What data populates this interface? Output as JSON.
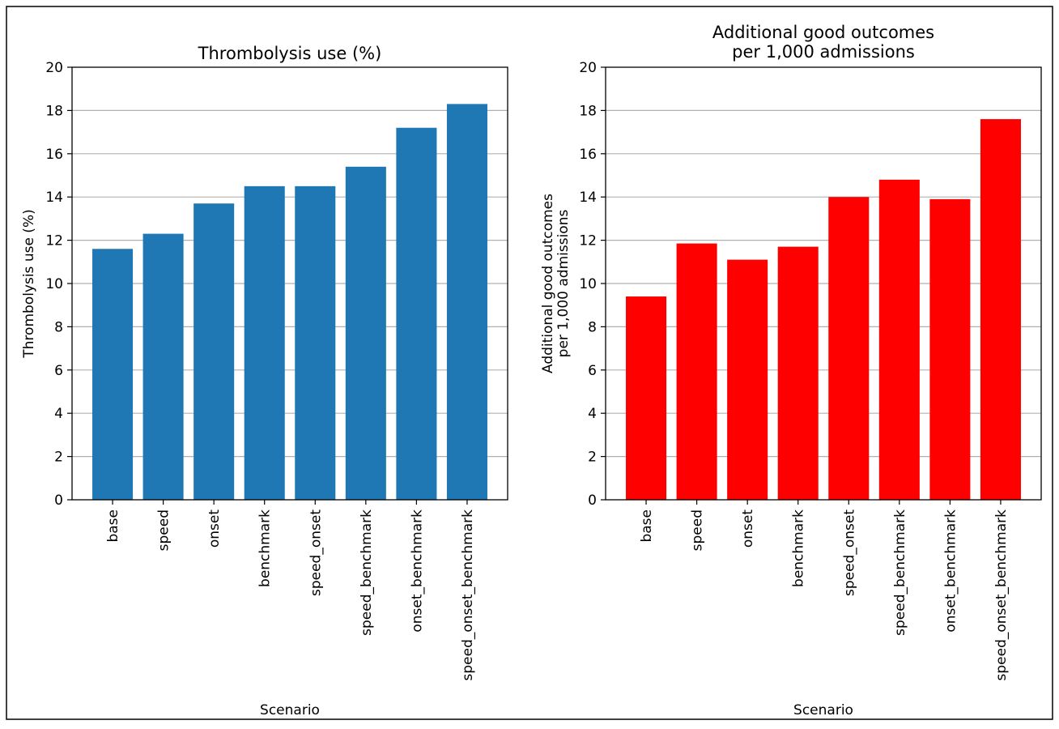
{
  "chart_data": [
    {
      "type": "bar",
      "title": "Thrombolysis use (%)",
      "xlabel": "Scenario",
      "ylabel": "Thrombolysis use (%)",
      "ylim": [
        0,
        20
      ],
      "yticks": [
        "0",
        "2",
        "4",
        "6",
        "8",
        "10",
        "12",
        "14",
        "16",
        "18",
        "20"
      ],
      "grid": "y",
      "categories": [
        "base",
        "speed",
        "onset",
        "benchmark",
        "speed_onset",
        "speed_benchmark",
        "onset_benchmark",
        "speed_onset_benchmark"
      ],
      "values": [
        11.6,
        12.3,
        13.7,
        14.5,
        14.5,
        15.4,
        17.2,
        18.3
      ],
      "color": "#1f77b4"
    },
    {
      "type": "bar",
      "title": [
        "Additional good outcomes",
        "per 1,000 admissions"
      ],
      "xlabel": "Scenario",
      "ylabel": [
        "Additional good outcomes",
        "per 1,000 admissions"
      ],
      "ylim": [
        0,
        20
      ],
      "yticks": [
        "0",
        "2",
        "4",
        "6",
        "8",
        "10",
        "12",
        "14",
        "16",
        "18",
        "20"
      ],
      "grid": "y",
      "categories": [
        "base",
        "speed",
        "onset",
        "benchmark",
        "speed_onset",
        "speed_benchmark",
        "onset_benchmark",
        "speed_onset_benchmark"
      ],
      "values": [
        9.4,
        11.85,
        11.1,
        11.7,
        14.0,
        14.8,
        13.9,
        17.6
      ],
      "color": "#ff0000"
    }
  ]
}
